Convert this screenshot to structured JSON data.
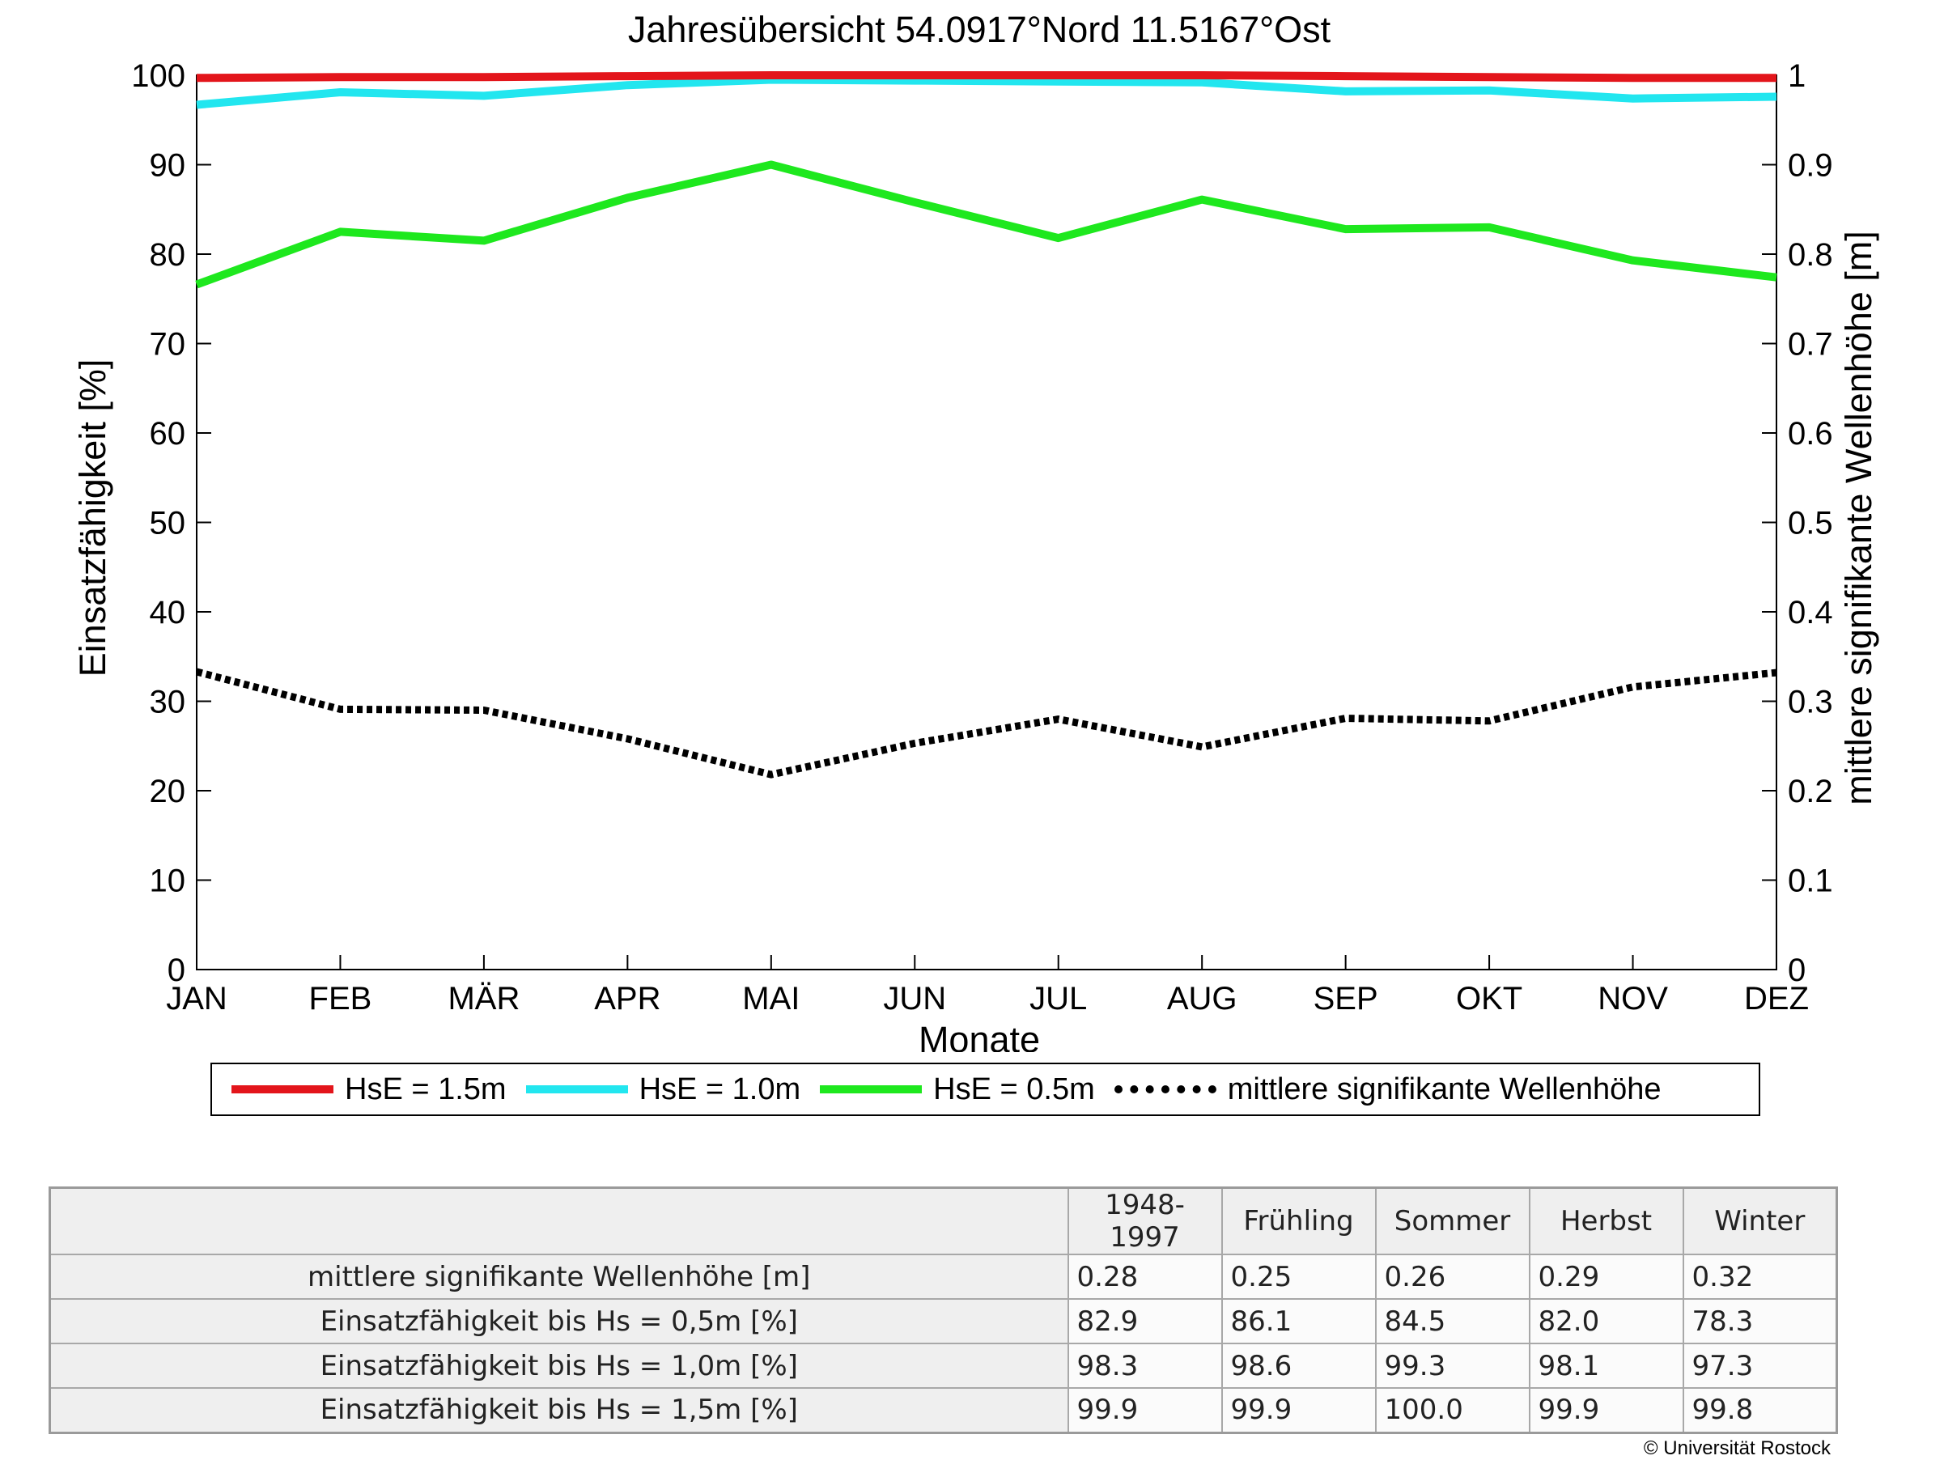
{
  "chart_data": {
    "type": "line",
    "title": "Jahresübersicht  54.0917°Nord  11.5167°Ost",
    "xlabel": "Monate",
    "ylabel": "Einsatzfähigkeit [%]",
    "y2label": "mittlere signifikante Wellenhöhe [m]",
    "ylim": [
      0,
      100
    ],
    "y2lim": [
      0,
      1
    ],
    "yticks": [
      "0",
      "10",
      "20",
      "30",
      "40",
      "50",
      "60",
      "70",
      "80",
      "90",
      "100"
    ],
    "y2ticks": [
      "0",
      "0.1",
      "0.2",
      "0.3",
      "0.4",
      "0.5",
      "0.6",
      "0.7",
      "0.8",
      "0.9",
      "1"
    ],
    "categories": [
      "JAN",
      "FEB",
      "MÄR",
      "APR",
      "MAI",
      "JUN",
      "JUL",
      "AUG",
      "SEP",
      "OKT",
      "NOV",
      "DEZ"
    ],
    "grid": false,
    "legend_position": "bottom",
    "series": [
      {
        "name": "HsE = 1.5m",
        "axis": "left",
        "color": "#e3151b",
        "style": "solid",
        "values": [
          99.7,
          99.8,
          99.8,
          99.9,
          100.0,
          100.0,
          100.0,
          100.0,
          99.9,
          99.8,
          99.7,
          99.7
        ]
      },
      {
        "name": "HsE = 1.0m",
        "axis": "left",
        "color": "#22e6ef",
        "style": "solid",
        "values": [
          96.7,
          98.1,
          97.7,
          98.9,
          99.5,
          99.4,
          99.3,
          99.2,
          98.2,
          98.3,
          97.4,
          97.6
        ]
      },
      {
        "name": "HsE = 0.5m",
        "axis": "left",
        "color": "#1ee81e",
        "style": "solid",
        "values": [
          76.6,
          82.5,
          81.5,
          86.3,
          90.0,
          85.8,
          81.8,
          86.1,
          82.8,
          83.0,
          79.3,
          77.4
        ]
      },
      {
        "name": "mittlere signifikante Wellenhöhe",
        "axis": "right",
        "color": "#000000",
        "style": "dotted",
        "values": [
          0.333,
          0.291,
          0.29,
          0.258,
          0.218,
          0.253,
          0.28,
          0.249,
          0.281,
          0.278,
          0.316,
          0.332
        ]
      }
    ]
  },
  "table": {
    "headers": [
      "1948-1997",
      "Frühling",
      "Sommer",
      "Herbst",
      "Winter"
    ],
    "rows": [
      {
        "label": "mittlere signifikante Wellenhöhe [m]",
        "values": [
          "0.28",
          "0.25",
          "0.26",
          "0.29",
          "0.32"
        ]
      },
      {
        "label": "Einsatzfähigkeit bis Hs = 0,5m [%]",
        "values": [
          "82.9",
          "86.1",
          "84.5",
          "82.0",
          "78.3"
        ]
      },
      {
        "label": "Einsatzfähigkeit bis Hs = 1,0m [%]",
        "values": [
          "98.3",
          "98.6",
          "99.3",
          "98.1",
          "97.3"
        ]
      },
      {
        "label": "Einsatzfähigkeit bis Hs = 1,5m [%]",
        "values": [
          "99.9",
          "99.9",
          "100.0",
          "99.9",
          "99.8"
        ]
      }
    ]
  },
  "copyright": "© Universität Rostock"
}
